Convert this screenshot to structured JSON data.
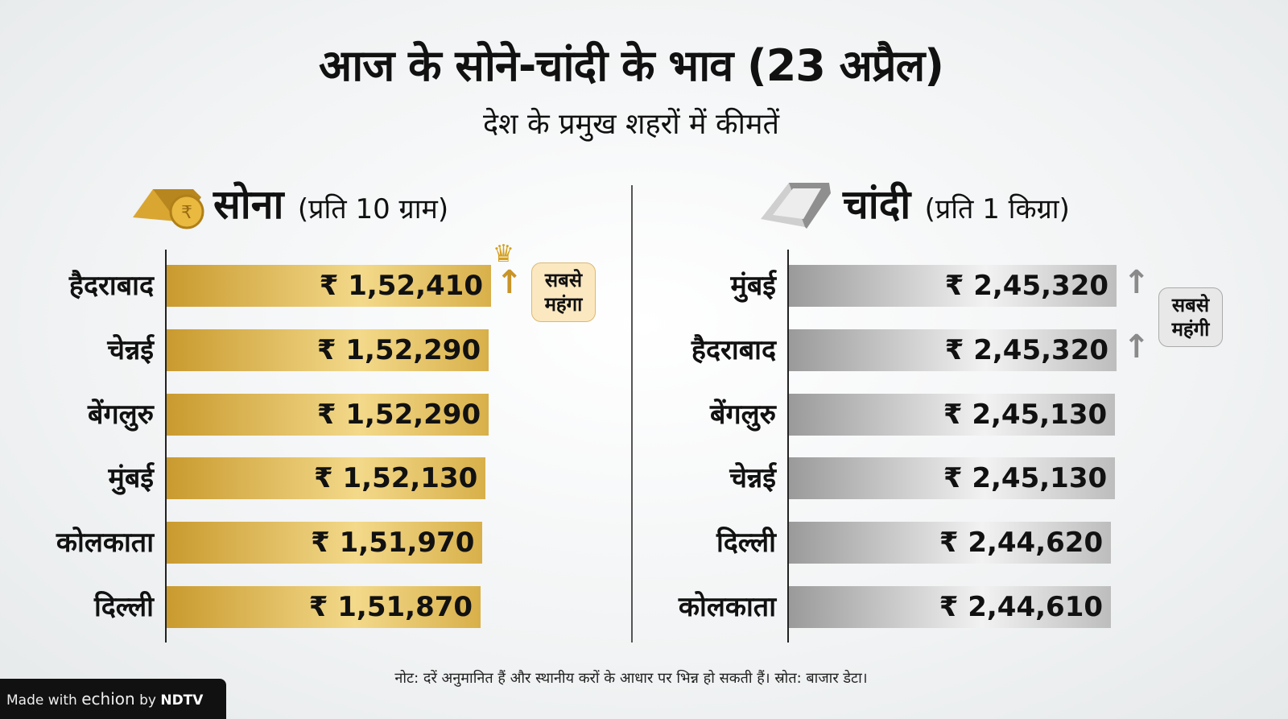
{
  "title": "आज के सोने-चांदी के भाव (23 अप्रैल)",
  "subtitle": "देश के प्रमुख शहरों में कीमतें",
  "colors": {
    "gold": "#d8b04a",
    "silver": "#bdbdbd",
    "gold_arrow": "#c8952a",
    "silver_arrow": "#8a8a8a"
  },
  "chart_data": [
    {
      "type": "bar",
      "orientation": "horizontal",
      "title": "सोना",
      "unit": "(प्रति 10 ग्राम)",
      "categories": [
        "हैदराबाद",
        "चेन्नई",
        "बेंगलुरु",
        "मुंबई",
        "कोलकाता",
        "दिल्ली"
      ],
      "values": [
        152410,
        152290,
        152290,
        152130,
        151970,
        151870
      ],
      "labels": [
        "₹ 1,52,410",
        "₹ 1,52,290",
        "₹ 1,52,290",
        "₹ 1,52,130",
        "₹ 1,51,970",
        "₹ 1,51,870"
      ],
      "callout": "सबसे महंगा",
      "callout_icon": "crown-icon"
    },
    {
      "type": "bar",
      "orientation": "horizontal",
      "title": "चांदी",
      "unit": "(प्रति 1 किग्रा)",
      "categories": [
        "मुंबई",
        "हैदराबाद",
        "बेंगलुरु",
        "चेन्नई",
        "दिल्ली",
        "कोलकाता"
      ],
      "values": [
        245320,
        245320,
        245130,
        245130,
        244620,
        244610
      ],
      "labels": [
        "₹ 2,45,320",
        "₹ 2,45,320",
        "₹ 2,45,130",
        "₹ 2,45,130",
        "₹ 2,44,620",
        "₹ 2,44,610"
      ],
      "callout": "सबसे महंगी"
    }
  ],
  "note": "नोट: दरें अनुमानित हैं और स्थानीय करों के आधार पर भिन्न हो सकती हैं। स्रोत: बाजार डेटा।",
  "badge": {
    "prefix": "Made with",
    "brand": "echion",
    "by": "by",
    "org": "NDTV"
  }
}
